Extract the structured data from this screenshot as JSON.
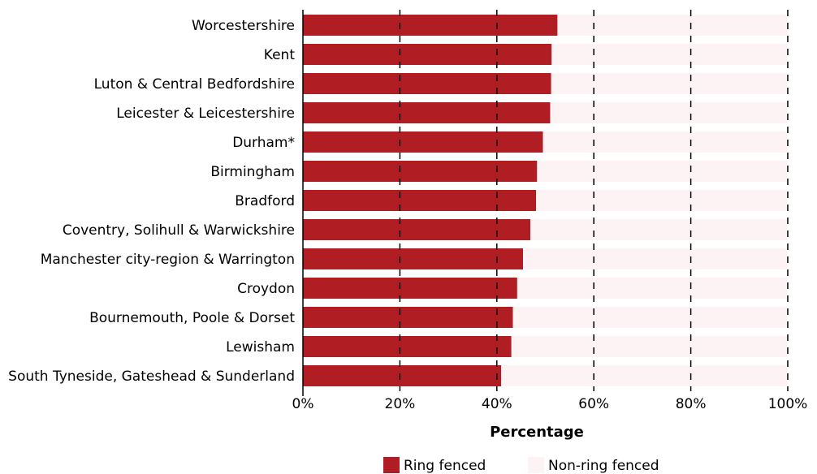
{
  "chart_data": {
    "type": "bar",
    "orientation": "horizontal",
    "stacked": true,
    "categories": [
      "Worcestershire",
      "Kent",
      "Luton & Central Bedfordshire",
      "Leicester & Leicestershire",
      "Durham*",
      "Birmingham",
      "Bradford",
      "Coventry, Solihull & Warwickshire",
      "Manchester city-region & Warrington",
      "Croydon",
      "Bournemouth, Poole & Dorset",
      "Lewisham",
      "South Tyneside, Gateshead & Sunderland"
    ],
    "series": [
      {
        "name": "Ring fenced",
        "color": "#b01e23",
        "values": [
          52.5,
          51.3,
          51.2,
          51.0,
          49.5,
          48.3,
          48.1,
          46.9,
          45.4,
          44.2,
          43.3,
          43.0,
          40.9
        ]
      },
      {
        "name": "Non-ring fenced",
        "color": "#fdf2f4",
        "values": [
          47.5,
          48.7,
          48.8,
          49.0,
          50.5,
          51.7,
          51.9,
          53.1,
          54.6,
          55.8,
          56.7,
          57.0,
          59.1
        ]
      }
    ],
    "xlim": [
      0,
      100
    ],
    "xticks": [
      "0%",
      "20%",
      "40%",
      "60%",
      "80%",
      "100%"
    ],
    "xtick_values": [
      0,
      20,
      40,
      60,
      80,
      100
    ],
    "xlabel": "Percentage",
    "ylabel": "",
    "title": "",
    "grid": "vertical dashed",
    "legend_position": "bottom"
  }
}
